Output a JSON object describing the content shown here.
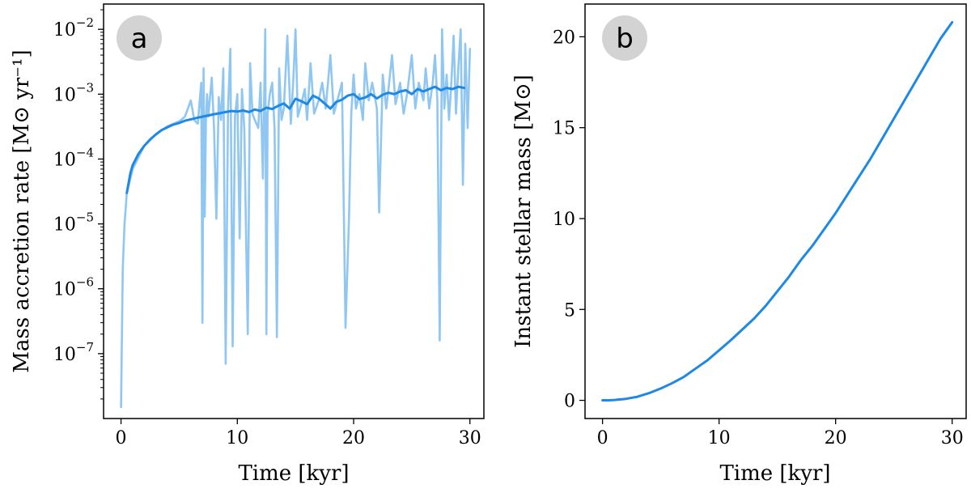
{
  "chart_data": [
    {
      "type": "line",
      "panel_label": "a",
      "xlabel": "Time [kyr]",
      "ylabel": "Mass accretion rate [M⊙ yr⁻¹]",
      "xlim": [
        -1.5,
        31.2
      ],
      "ylim": [
        1e-08,
        0.0245
      ],
      "yscale": "log",
      "xticks": [
        0,
        10,
        20,
        30
      ],
      "xtick_labels": [
        "0",
        "10",
        "20",
        "30"
      ],
      "yticks": [
        1e-07,
        1e-06,
        1e-05,
        0.0001,
        0.001,
        0.01
      ],
      "ytick_labels": [
        {
          "base": "10",
          "exp": "−7"
        },
        {
          "base": "10",
          "exp": "−6"
        },
        {
          "base": "10",
          "exp": "−5"
        },
        {
          "base": "10",
          "exp": "−4"
        },
        {
          "base": "10",
          "exp": "−3"
        },
        {
          "base": "10",
          "exp": "−2"
        }
      ],
      "grid": false,
      "series": [
        {
          "role": "instantaneous",
          "color": "#8fc6f2",
          "x": [
            0.0,
            0.05,
            0.15,
            0.3,
            0.5,
            1.0,
            2.0,
            3.0,
            4.0,
            5.0,
            5.5,
            6.0,
            6.3,
            6.6,
            6.9,
            7.0,
            7.1,
            7.2,
            7.3,
            7.4,
            7.5,
            7.8,
            8.0,
            8.2,
            8.4,
            8.6,
            8.8,
            9.0,
            9.2,
            9.4,
            9.6,
            9.8,
            10.0,
            10.2,
            10.4,
            10.6,
            10.9,
            11.1,
            11.3,
            11.5,
            11.8,
            12.0,
            12.2,
            12.4,
            12.5,
            12.6,
            12.8,
            13.0,
            13.2,
            13.4,
            13.6,
            13.8,
            14.0,
            14.3,
            14.6,
            14.8,
            15.0,
            15.2,
            15.5,
            15.8,
            16.0,
            16.3,
            16.6,
            17.0,
            17.3,
            17.6,
            18.0,
            18.3,
            18.6,
            19.0,
            19.3,
            19.6,
            19.8,
            20.0,
            20.2,
            20.5,
            20.8,
            21.0,
            21.3,
            21.6,
            22.0,
            22.2,
            22.5,
            22.8,
            23.0,
            23.3,
            23.6,
            24.0,
            24.3,
            24.6,
            25.0,
            25.3,
            25.6,
            26.0,
            26.2,
            26.5,
            26.8,
            27.0,
            27.2,
            27.4,
            27.6,
            27.8,
            28.0,
            28.2,
            28.4,
            28.6,
            28.8,
            29.0,
            29.2,
            29.4,
            29.6,
            29.8,
            30.0
          ],
          "values": [
            1.5e-08,
            8e-08,
            2e-06,
            1e-05,
            3e-05,
            7e-05,
            0.00016,
            0.00024,
            0.00032,
            0.00038,
            0.00045,
            0.0008,
            0.0004,
            0.00035,
            0.0015,
            3e-07,
            0.0025,
            1.3e-05,
            0.0004,
            0.001,
            0.00045,
            0.0018,
            0.0003,
            1.2e-05,
            0.0009,
            0.0004,
            0.0025,
            7e-08,
            0.0006,
            0.005,
            1.3e-07,
            0.00045,
            0.001,
            6e-06,
            0.0012,
            0.0003,
            2e-07,
            0.003,
            0.0005,
            0.0004,
            0.0003,
            0.0015,
            5e-05,
            0.01,
            2e-07,
            0.0005,
            0.001,
            0.0015,
            0.0003,
            1.8e-07,
            0.0025,
            0.0004,
            0.0006,
            0.008,
            0.00035,
            0.0015,
            0.01,
            0.00045,
            0.0007,
            0.0012,
            0.0004,
            0.003,
            0.0005,
            0.0008,
            0.0015,
            0.0006,
            0.004,
            0.0005,
            0.0008,
            0.0015,
            2.5e-07,
            1.2e-05,
            0.0005,
            0.002,
            0.0006,
            0.001,
            0.0004,
            0.003,
            0.0008,
            0.0015,
            0.0006,
            1.5e-05,
            0.002,
            0.0006,
            0.0012,
            0.004,
            0.0007,
            0.0015,
            0.0005,
            0.001,
            0.004,
            0.0006,
            0.0015,
            0.0008,
            0.0025,
            0.0006,
            0.0015,
            0.004,
            0.0008,
            1.6e-07,
            0.01,
            0.0006,
            0.002,
            0.0004,
            0.0015,
            0.008,
            0.0005,
            0.0025,
            0.01,
            4e-05,
            0.006,
            0.0003,
            0.005
          ]
        },
        {
          "role": "smoothed",
          "color": "#1e88e5",
          "x": [
            0.5,
            0.8,
            1.0,
            1.5,
            2.0,
            2.5,
            3.0,
            3.5,
            4.0,
            4.5,
            5.0,
            5.5,
            6.0,
            6.5,
            7.0,
            7.5,
            8.0,
            8.5,
            9.0,
            9.5,
            10.0,
            10.5,
            11.0,
            11.5,
            12.0,
            12.5,
            13.0,
            13.5,
            14.0,
            14.5,
            15.0,
            15.5,
            16.0,
            16.5,
            17.0,
            17.5,
            18.0,
            18.5,
            19.0,
            19.5,
            20.0,
            20.5,
            21.0,
            21.5,
            22.0,
            22.5,
            23.0,
            23.5,
            24.0,
            24.5,
            25.0,
            25.5,
            26.0,
            26.5,
            27.0,
            27.5,
            28.0,
            28.5,
            29.0,
            29.5
          ],
          "values": [
            3e-05,
            6e-05,
            8e-05,
            0.00012,
            0.00016,
            0.0002,
            0.00024,
            0.00028,
            0.00031,
            0.00034,
            0.00036,
            0.00039,
            0.00041,
            0.00043,
            0.00045,
            0.00047,
            0.00049,
            0.00051,
            0.00053,
            0.00055,
            0.00054,
            0.00056,
            0.00053,
            0.00058,
            0.00055,
            0.00062,
            0.00059,
            0.00066,
            0.00072,
            0.0006,
            0.00085,
            0.00078,
            0.0007,
            0.00095,
            0.00086,
            0.00072,
            0.0006,
            0.00076,
            0.00082,
            0.00095,
            0.001,
            0.00084,
            0.00089,
            0.001,
            0.00086,
            0.00098,
            0.00105,
            0.001,
            0.0011,
            0.00115,
            0.001,
            0.0012,
            0.0011,
            0.0012,
            0.0013,
            0.00115,
            0.00125,
            0.0012,
            0.0013,
            0.00125
          ]
        }
      ]
    },
    {
      "type": "line",
      "panel_label": "b",
      "xlabel": "Time [kyr]",
      "ylabel": "Instant stellar mass [M⊙]",
      "xlim": [
        -1.5,
        31.2
      ],
      "ylim": [
        -1.0,
        21.8
      ],
      "xticks": [
        0,
        10,
        20,
        30
      ],
      "xtick_labels": [
        "0",
        "10",
        "20",
        "30"
      ],
      "yticks": [
        0,
        5,
        10,
        15,
        20
      ],
      "ytick_labels": [
        "0",
        "5",
        "10",
        "15",
        "20"
      ],
      "grid": false,
      "series": [
        {
          "color": "#1e88e5",
          "x": [
            0,
            0.5,
            1,
            2,
            3,
            4,
            5,
            6,
            7,
            8,
            9,
            10,
            11,
            12,
            13,
            14,
            15,
            16,
            17,
            18,
            19,
            20,
            21,
            22,
            23,
            24,
            25,
            26,
            27,
            28,
            29,
            30
          ],
          "values": [
            0.0,
            0.0,
            0.02,
            0.08,
            0.2,
            0.4,
            0.65,
            0.95,
            1.3,
            1.75,
            2.2,
            2.75,
            3.3,
            3.9,
            4.5,
            5.2,
            6.0,
            6.8,
            7.7,
            8.5,
            9.4,
            10.3,
            11.3,
            12.3,
            13.3,
            14.4,
            15.5,
            16.6,
            17.7,
            18.8,
            19.9,
            20.8
          ]
        }
      ]
    }
  ]
}
